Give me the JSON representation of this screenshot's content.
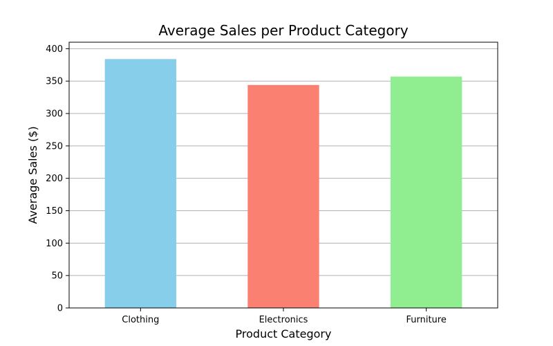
{
  "chart_data": {
    "type": "bar",
    "title": "Average Sales per Product Category",
    "xlabel": "Product Category",
    "ylabel": "Average Sales ($)",
    "categories": [
      "Clothing",
      "Electronics",
      "Furniture"
    ],
    "values": [
      384,
      344,
      357
    ],
    "colors": [
      "#87ceeb",
      "#fa8072",
      "#90ee90"
    ],
    "ylim": [
      0,
      410
    ],
    "yticks": [
      0,
      50,
      100,
      150,
      200,
      250,
      300,
      350,
      400
    ],
    "grid": "y-axis",
    "legend": "none"
  }
}
